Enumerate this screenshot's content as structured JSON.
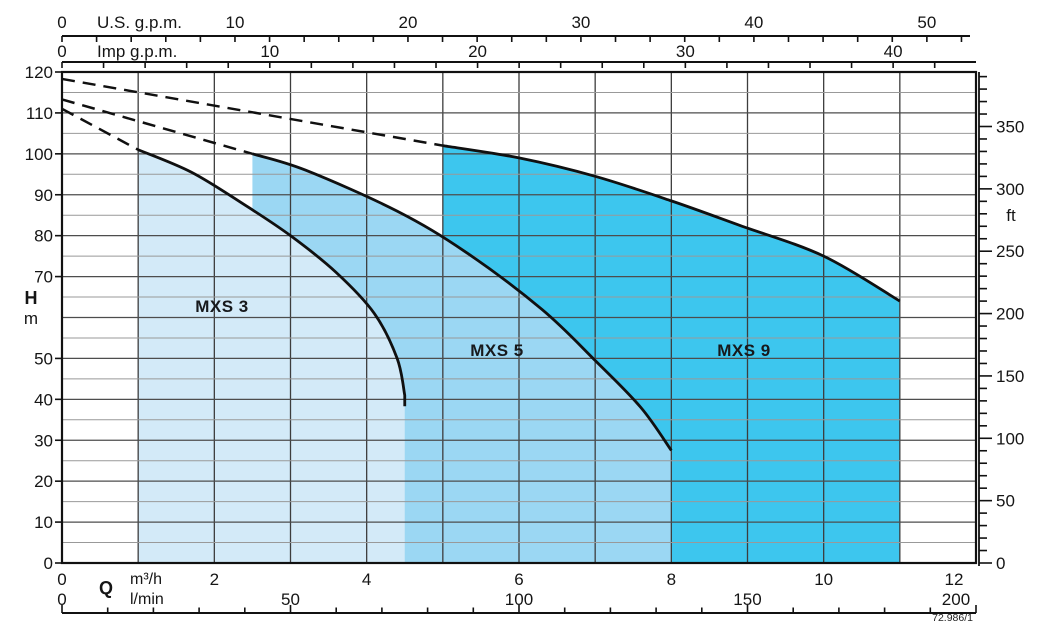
{
  "chart_data": {
    "type": "area",
    "title": "",
    "description": "Pump performance envelope chart (head H vs flow Q) for MXS series pumps",
    "x_bottom_primary": {
      "axis_label": "Q",
      "unit": "m³/h",
      "min": 0,
      "max": 12,
      "tick_labels": [
        0,
        2,
        4,
        6,
        8,
        10,
        12
      ],
      "gridline_step": 1
    },
    "x_bottom_secondary": {
      "unit": "l/min",
      "min": 0,
      "max": 200,
      "tick_labels": [
        0,
        50,
        100,
        150,
        200
      ],
      "minor_tick_step": 10,
      "lmin_per_m3h": 16.6667
    },
    "x_top_primary": {
      "unit_label": "U.S. g.p.m.",
      "tick_labels": [
        0,
        10,
        20,
        30,
        40,
        50
      ],
      "minor_tick_step": 2,
      "minor_tick_max": 52,
      "m3h_per_unit": 0.2271
    },
    "x_top_secondary": {
      "unit_label": "Imp g.p.m.",
      "tick_labels": [
        0,
        10,
        20,
        30,
        40
      ],
      "minor_tick_step": 2,
      "minor_tick_max": 42,
      "m3h_per_unit": 0.2728
    },
    "y_left": {
      "axis_label": "H",
      "unit": "m",
      "min": 0,
      "max": 120,
      "tick_labels": [
        120,
        110,
        100,
        90,
        80,
        70,
        50,
        40,
        30,
        20,
        10,
        0
      ],
      "note_60_replaced_by_axis_title": true,
      "gridline_step": 5
    },
    "y_right": {
      "unit": "ft",
      "tick_labels": [
        350,
        300,
        250,
        200,
        150,
        100,
        50,
        0
      ],
      "minor_tick_step": 10,
      "minor_tick_max": 390,
      "m_per_unit": 0.3048
    },
    "grid": {
      "v_color": "#3d3d3d",
      "h_major_color": "#4d4d4d",
      "h_minor_color": "#999999"
    },
    "series": [
      {
        "name": "MXS 3",
        "fill_color": "#d3eaf8",
        "curve_qh": [
          [
            1.0,
            101
          ],
          [
            1.7,
            95.5
          ],
          [
            2.4,
            87.5
          ],
          [
            3.0,
            80
          ],
          [
            3.6,
            71
          ],
          [
            4.1,
            61
          ],
          [
            4.4,
            50
          ],
          [
            4.5,
            41
          ]
        ],
        "dashed_extension_qh": [
          [
            0,
            111
          ],
          [
            1.0,
            101
          ]
        ],
        "label_pos_qh": [
          2.1,
          62.5
        ]
      },
      {
        "name": "MXS 5",
        "fill_color": "#9bd7f3",
        "curve_qh": [
          [
            2.5,
            100
          ],
          [
            3.2,
            96
          ],
          [
            4.4,
            86
          ],
          [
            5.3,
            76
          ],
          [
            6.3,
            62
          ],
          [
            7.0,
            49.5
          ],
          [
            7.6,
            38
          ],
          [
            8.0,
            27.5
          ]
        ],
        "dashed_extension_qh": [
          [
            0,
            113.3
          ],
          [
            2.5,
            100
          ]
        ],
        "label_pos_qh": [
          5.7,
          51.5
        ]
      },
      {
        "name": "MXS 9",
        "fill_color": "#3dc6ee",
        "curve_qh": [
          [
            5.0,
            102
          ],
          [
            6.0,
            99
          ],
          [
            7.0,
            94.5
          ],
          [
            8.0,
            88.5
          ],
          [
            8.9,
            82.5
          ],
          [
            10.0,
            75
          ],
          [
            11.0,
            64
          ]
        ],
        "dashed_extension_qh": [
          [
            0,
            118.3
          ],
          [
            5.0,
            102
          ]
        ],
        "label_pos_qh": [
          8.95,
          51.5
        ]
      }
    ],
    "curve_color": "#101010",
    "drawing_ref": "72.986/1"
  },
  "labels": {
    "us_gpm": "U.S. g.p.m.",
    "imp_gpm": "Imp g.p.m.",
    "head": "H",
    "head_unit": "m",
    "flow": "Q",
    "flow_unit_m3h": "m³/h",
    "flow_unit_lmin": "l/min",
    "right_unit": "ft"
  }
}
